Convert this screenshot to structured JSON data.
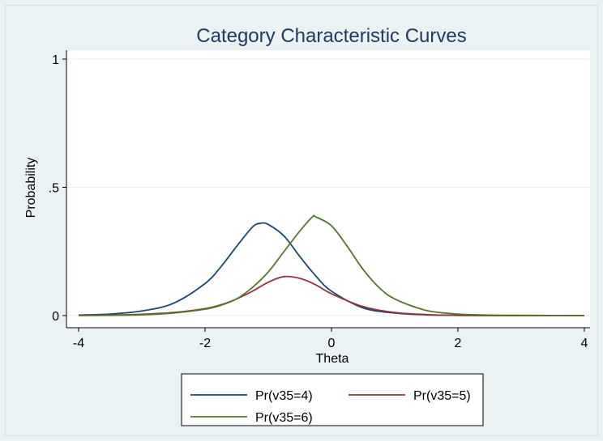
{
  "chart_data": {
    "type": "line",
    "title": "Category Characteristic Curves",
    "xlabel": "Theta",
    "ylabel": "Probability",
    "xlim": [
      -4,
      4
    ],
    "ylim": [
      0,
      1
    ],
    "x_ticks": [
      -4,
      -2,
      0,
      2,
      4
    ],
    "x_tick_labels": [
      "-4",
      "-2",
      "0",
      "2",
      "4"
    ],
    "y_ticks": [
      0,
      0.5,
      1
    ],
    "y_tick_labels": [
      "0",
      ".5",
      "1"
    ],
    "grid": true,
    "legend_position": "bottom",
    "series": [
      {
        "name": "Pr(v35=4)",
        "color": "#1a476f",
        "x": [
          -4,
          -3.5,
          -3,
          -2.5,
          -2,
          -1.75,
          -1.5,
          -1.25,
          -1.12,
          -1,
          -0.75,
          -0.5,
          -0.25,
          0,
          0.5,
          1,
          1.5,
          2,
          3,
          4
        ],
        "y": [
          0.002,
          0.006,
          0.018,
          0.048,
          0.125,
          0.19,
          0.27,
          0.345,
          0.36,
          0.355,
          0.31,
          0.23,
          0.155,
          0.095,
          0.03,
          0.01,
          0.003,
          0.001,
          0.0,
          0.0
        ]
      },
      {
        "name": "Pr(v35=5)",
        "color": "#90353b",
        "x": [
          -4,
          -3.5,
          -3,
          -2.5,
          -2,
          -1.75,
          -1.5,
          -1.25,
          -1,
          -0.75,
          -0.5,
          -0.25,
          0,
          0.5,
          1,
          1.5,
          2,
          3,
          4
        ],
        "y": [
          0.001,
          0.002,
          0.005,
          0.012,
          0.027,
          0.042,
          0.065,
          0.095,
          0.13,
          0.152,
          0.145,
          0.12,
          0.085,
          0.035,
          0.012,
          0.004,
          0.001,
          0.0,
          0.0
        ]
      },
      {
        "name": "Pr(v35=6)",
        "color": "#55752f",
        "x": [
          -4,
          -3.5,
          -3,
          -2.5,
          -2,
          -1.75,
          -1.5,
          -1.25,
          -1,
          -0.75,
          -0.5,
          -0.3,
          -0.25,
          0,
          0.25,
          0.5,
          0.75,
          1,
          1.5,
          2,
          2.5,
          3,
          4
        ],
        "y": [
          0.0,
          0.001,
          0.003,
          0.01,
          0.025,
          0.04,
          0.065,
          0.11,
          0.17,
          0.25,
          0.33,
          0.385,
          0.385,
          0.35,
          0.27,
          0.18,
          0.11,
          0.065,
          0.02,
          0.006,
          0.002,
          0.001,
          0.0
        ]
      }
    ]
  }
}
